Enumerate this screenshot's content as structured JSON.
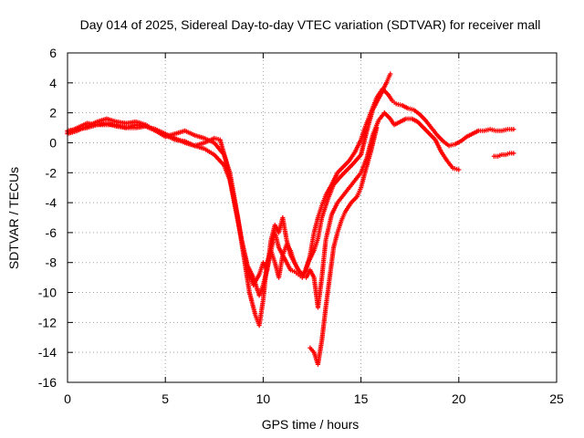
{
  "chart_data": {
    "type": "scatter",
    "title": "Day 014 of 2025, Sidereal Day-to-day VTEC variation (SDTVAR) for receiver mall",
    "xlabel": "GPS time / hours",
    "ylabel": "SDTVAR / TECUs",
    "xlim": [
      0,
      25
    ],
    "ylim": [
      -16,
      6
    ],
    "x_ticks": [
      0,
      5,
      10,
      15,
      20,
      25
    ],
    "y_ticks": [
      6,
      4,
      2,
      0,
      -2,
      -4,
      -6,
      -8,
      -10,
      -12,
      -14,
      -16
    ],
    "grid": true,
    "legend": "none",
    "marker": "plus",
    "series": [
      {
        "name": "track-a",
        "color": "#ff0000",
        "x": [
          0,
          0.5,
          1,
          1.5,
          2,
          2.5,
          3,
          3.5,
          4,
          4.5,
          5,
          5.5,
          6,
          6.5,
          7,
          7.5,
          7.8,
          8.1,
          8.4,
          8.7,
          9,
          9.3,
          9.6,
          9.8,
          10,
          10.2,
          10.4,
          10.6,
          10.8,
          11,
          11.2,
          11.4,
          11.6,
          11.8,
          12,
          12.2,
          12.4,
          12.6,
          12.8,
          13,
          13.2,
          13.5,
          13.8,
          14.1,
          14.4,
          14.7,
          15,
          15.2,
          15.5,
          15.8,
          16.1,
          16.4,
          16.6,
          16.8,
          17.1,
          17.4,
          17.7,
          18,
          18.3,
          18.6,
          18.9,
          19.2,
          19.5,
          19.8,
          20.1,
          20.4,
          20.7,
          21,
          21.3,
          21.6,
          21.9,
          22.2,
          22.5,
          22.8
        ],
        "y": [
          0.8,
          0.9,
          1.0,
          1.2,
          1.3,
          1.1,
          1.0,
          1.2,
          1.1,
          0.9,
          0.6,
          0.3,
          0.0,
          -0.2,
          0.0,
          0.3,
          0.2,
          -1.2,
          -3.0,
          -5.0,
          -7.5,
          -10.0,
          -11.5,
          -12.2,
          -10.5,
          -8.0,
          -7.2,
          -8.0,
          -9.0,
          -7.5,
          -6.8,
          -7.2,
          -8.0,
          -8.5,
          -8.8,
          -8.5,
          -7.5,
          -6.0,
          -5.0,
          -4.2,
          -3.5,
          -2.8,
          -2.0,
          -1.6,
          -1.2,
          -0.6,
          0.2,
          1.0,
          2.0,
          3.0,
          3.6,
          3.2,
          2.8,
          2.6,
          2.5,
          2.3,
          2.2,
          1.9,
          1.5,
          1.0,
          0.5,
          0.1,
          -0.2,
          -0.1,
          0.1,
          0.4,
          0.6,
          0.8,
          0.8,
          0.9,
          0.8,
          0.8,
          0.9,
          0.9
        ]
      },
      {
        "name": "track-b",
        "color": "#ff0000",
        "x": [
          0,
          0.5,
          1,
          1.5,
          2,
          2.5,
          3,
          3.5,
          4,
          4.5,
          5,
          5.5,
          6,
          6.5,
          7,
          7.5,
          8,
          8.3,
          8.6,
          8.9,
          9.2,
          9.5,
          9.8,
          10,
          10.2,
          10.4,
          10.6,
          10.8,
          11,
          11.2,
          11.4,
          11.6,
          11.8,
          12,
          12.2,
          12.4,
          12.6,
          12.8,
          13,
          13.2,
          13.5,
          13.8,
          14.1,
          14.4,
          14.7,
          15,
          15.3,
          15.6,
          15.9,
          16.2,
          16.5,
          16.7,
          17,
          17.3,
          17.6,
          17.9,
          18.2,
          18.5,
          18.8,
          19.1,
          19.4,
          19.7,
          20
        ],
        "y": [
          0.6,
          0.8,
          1.1,
          1.4,
          1.6,
          1.4,
          1.3,
          1.4,
          1.2,
          0.8,
          0.4,
          0.6,
          0.8,
          0.5,
          0.3,
          0.0,
          -0.8,
          -2.0,
          -4.2,
          -6.5,
          -8.5,
          -9.5,
          -8.8,
          -8.0,
          -8.5,
          -6.5,
          -5.5,
          -6.0,
          -5.0,
          -6.5,
          -7.5,
          -8.0,
          -8.5,
          -8.8,
          -9.0,
          -8.5,
          -9.0,
          -11.0,
          -9.0,
          -6.5,
          -4.8,
          -4.0,
          -3.5,
          -3.0,
          -2.5,
          -2.0,
          -1.0,
          0.5,
          1.5,
          2.0,
          1.6,
          1.2,
          1.4,
          1.6,
          1.6,
          1.4,
          1.0,
          0.6,
          0.2,
          -0.6,
          -1.2,
          -1.7,
          -1.8
        ]
      },
      {
        "name": "track-c",
        "color": "#ff0000",
        "x": [
          0,
          0.5,
          1,
          1.5,
          2,
          2.5,
          3,
          3.5,
          4,
          4.5,
          5,
          5.5,
          6,
          6.5,
          7,
          7.5,
          8,
          8.3,
          8.6,
          8.9,
          9.2,
          9.5,
          9.8,
          10,
          10.2,
          10.4,
          10.6,
          10.8,
          11,
          11.2,
          11.4,
          11.6,
          11.8,
          12,
          12.3,
          12.6,
          12.8,
          13,
          13.3,
          13.6,
          14,
          14.3,
          14.6,
          15,
          15.3,
          15.6,
          16,
          16.3,
          16.5
        ],
        "y": [
          0.7,
          1.0,
          1.3,
          1.2,
          1.2,
          1.2,
          1.0,
          1.0,
          1.1,
          0.8,
          0.5,
          0.2,
          0.1,
          -0.2,
          -0.4,
          -0.8,
          -1.5,
          -2.5,
          -4.5,
          -6.5,
          -8.2,
          -9.0,
          -10.2,
          -9.5,
          -8.5,
          -7.2,
          -6.0,
          -7.0,
          -7.5,
          -8.0,
          -8.5,
          -8.6,
          -8.8,
          -9.0,
          -8.0,
          -7.2,
          -6.4,
          -5.0,
          -3.8,
          -2.8,
          -2.2,
          -1.8,
          -1.4,
          -0.8,
          0.8,
          2.2,
          3.2,
          4.0,
          4.6
        ]
      },
      {
        "name": "track-d",
        "color": "#ff0000",
        "x": [
          12.4,
          12.6,
          12.8,
          13.0,
          13.2,
          13.4,
          13.6,
          13.8,
          14.0,
          14.2,
          14.5,
          14.8,
          15.0,
          15.2,
          15.5,
          15.8
        ],
        "y": [
          -13.7,
          -14.0,
          -14.8,
          -13.2,
          -11.0,
          -9.0,
          -7.0,
          -6.0,
          -5.2,
          -4.6,
          -4.0,
          -3.6,
          -3.0,
          -2.0,
          -0.6,
          1.0
        ]
      },
      {
        "name": "track-e",
        "color": "#ff0000",
        "x": [
          21.8,
          22.0,
          22.2,
          22.4,
          22.6,
          22.8
        ],
        "y": [
          -0.9,
          -0.9,
          -0.8,
          -0.8,
          -0.7,
          -0.7
        ]
      }
    ]
  }
}
